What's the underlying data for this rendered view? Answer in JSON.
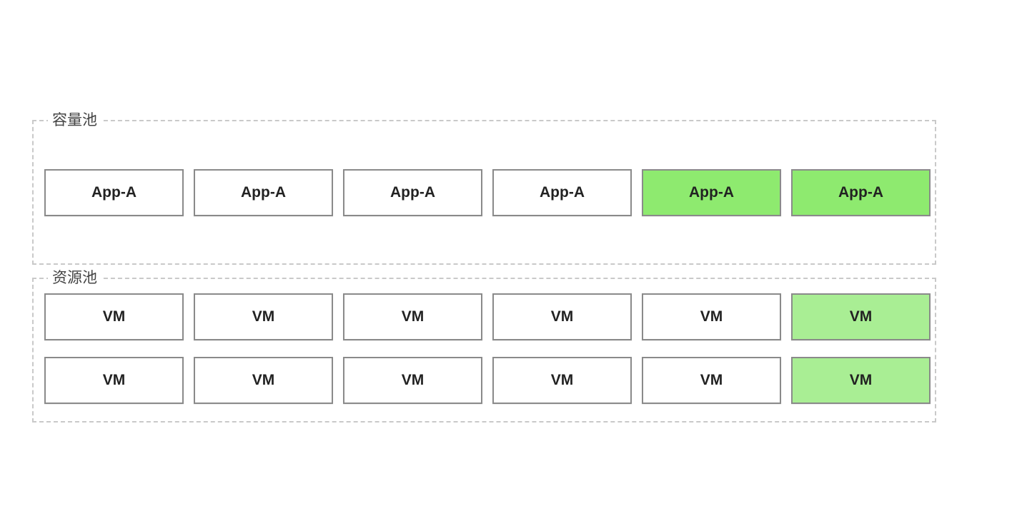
{
  "capacity_pool": {
    "label": "容量池",
    "apps": [
      {
        "label": "App-A",
        "highlight": "none"
      },
      {
        "label": "App-A",
        "highlight": "none"
      },
      {
        "label": "App-A",
        "highlight": "none"
      },
      {
        "label": "App-A",
        "highlight": "none"
      },
      {
        "label": "App-A",
        "highlight": "strong"
      },
      {
        "label": "App-A",
        "highlight": "strong"
      }
    ]
  },
  "resource_pool": {
    "label": "资源池",
    "rows": [
      [
        {
          "label": "VM",
          "highlight": "none"
        },
        {
          "label": "VM",
          "highlight": "none"
        },
        {
          "label": "VM",
          "highlight": "none"
        },
        {
          "label": "VM",
          "highlight": "none"
        },
        {
          "label": "VM",
          "highlight": "none"
        },
        {
          "label": "VM",
          "highlight": "light"
        }
      ],
      [
        {
          "label": "VM",
          "highlight": "none"
        },
        {
          "label": "VM",
          "highlight": "none"
        },
        {
          "label": "VM",
          "highlight": "none"
        },
        {
          "label": "VM",
          "highlight": "none"
        },
        {
          "label": "VM",
          "highlight": "none"
        },
        {
          "label": "VM",
          "highlight": "light"
        }
      ]
    ]
  },
  "colors": {
    "highlight_strong": "#8eea6f",
    "highlight_light": "#a9ee94",
    "box_border": "#8a8a8a",
    "pool_border": "#c9c9c9"
  }
}
